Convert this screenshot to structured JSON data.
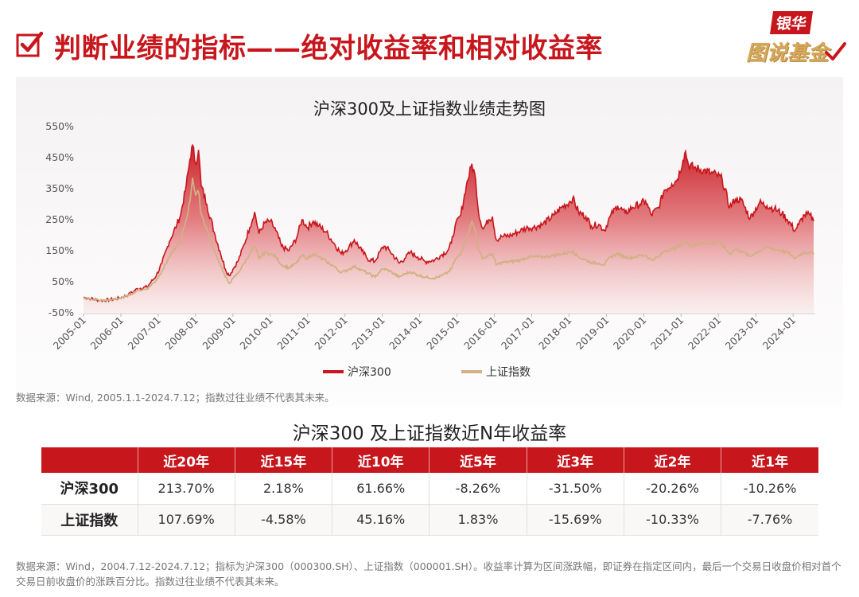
{
  "header": {
    "title": "判断业绩的指标——绝对收益率和相对收益率",
    "brand_top": "银华",
    "brand_bottom": "图说基金"
  },
  "colors": {
    "accent": "#c8161d",
    "hs300": "#c8161d",
    "sz": "#d2b083",
    "brand_gold": "#d6a85c"
  },
  "chart_data": {
    "type": "area",
    "title": "沪深300及上证指数业绩走势图",
    "xlabel": "",
    "ylabel": "",
    "y_ticks": [
      "550%",
      "450%",
      "350%",
      "250%",
      "150%",
      "50%",
      "-50%"
    ],
    "y_tick_values": [
      550,
      450,
      350,
      250,
      150,
      50,
      -50
    ],
    "ylim": [
      -50,
      550
    ],
    "x_ticks": [
      "2005-01",
      "2006-01",
      "2007-01",
      "2008-01",
      "2009-01",
      "2010-01",
      "2011-01",
      "2012-01",
      "2013-01",
      "2014-01",
      "2015-01",
      "2016-01",
      "2017-01",
      "2018-01",
      "2019-01",
      "2020-01",
      "2021-01",
      "2022-01",
      "2023-01",
      "2024-01"
    ],
    "xlim": [
      2005.0,
      2024.55
    ],
    "legend": [
      "沪深300",
      "上证指数"
    ],
    "legend_position": "bottom-center",
    "series": [
      {
        "name": "沪深300",
        "points": [
          [
            2005.0,
            0
          ],
          [
            2005.2,
            -4
          ],
          [
            2005.45,
            -10
          ],
          [
            2005.7,
            -8
          ],
          [
            2005.95,
            -3
          ],
          [
            2006.2,
            8
          ],
          [
            2006.45,
            28
          ],
          [
            2006.7,
            33
          ],
          [
            2006.95,
            70
          ],
          [
            2007.1,
            110
          ],
          [
            2007.3,
            180
          ],
          [
            2007.5,
            235
          ],
          [
            2007.6,
            265
          ],
          [
            2007.75,
            360
          ],
          [
            2007.85,
            445
          ],
          [
            2007.92,
            490
          ],
          [
            2008.0,
            430
          ],
          [
            2008.08,
            475
          ],
          [
            2008.15,
            360
          ],
          [
            2008.3,
            300
          ],
          [
            2008.5,
            210
          ],
          [
            2008.65,
            150
          ],
          [
            2008.8,
            90
          ],
          [
            2008.9,
            70
          ],
          [
            2009.0,
            90
          ],
          [
            2009.15,
            120
          ],
          [
            2009.3,
            170
          ],
          [
            2009.45,
            225
          ],
          [
            2009.58,
            275
          ],
          [
            2009.7,
            205
          ],
          [
            2009.85,
            240
          ],
          [
            2010.0,
            245
          ],
          [
            2010.15,
            215
          ],
          [
            2010.3,
            165
          ],
          [
            2010.5,
            150
          ],
          [
            2010.7,
            190
          ],
          [
            2010.85,
            250
          ],
          [
            2011.0,
            225
          ],
          [
            2011.15,
            245
          ],
          [
            2011.3,
            230
          ],
          [
            2011.5,
            210
          ],
          [
            2011.7,
            175
          ],
          [
            2011.9,
            140
          ],
          [
            2012.1,
            160
          ],
          [
            2012.25,
            185
          ],
          [
            2012.45,
            150
          ],
          [
            2012.6,
            125
          ],
          [
            2012.8,
            115
          ],
          [
            2012.95,
            150
          ],
          [
            2013.05,
            165
          ],
          [
            2013.2,
            150
          ],
          [
            2013.45,
            110
          ],
          [
            2013.6,
            125
          ],
          [
            2013.75,
            145
          ],
          [
            2013.95,
            130
          ],
          [
            2014.15,
            115
          ],
          [
            2014.4,
            120
          ],
          [
            2014.6,
            138
          ],
          [
            2014.75,
            150
          ],
          [
            2014.85,
            175
          ],
          [
            2014.95,
            230
          ],
          [
            2015.1,
            265
          ],
          [
            2015.25,
            360
          ],
          [
            2015.4,
            430
          ],
          [
            2015.5,
            380
          ],
          [
            2015.58,
            270
          ],
          [
            2015.7,
            220
          ],
          [
            2015.85,
            250
          ],
          [
            2015.95,
            260
          ],
          [
            2016.05,
            185
          ],
          [
            2016.2,
            195
          ],
          [
            2016.45,
            200
          ],
          [
            2016.7,
            215
          ],
          [
            2016.9,
            225
          ],
          [
            2017.05,
            225
          ],
          [
            2017.3,
            235
          ],
          [
            2017.6,
            265
          ],
          [
            2017.8,
            290
          ],
          [
            2018.0,
            305
          ],
          [
            2018.1,
            320
          ],
          [
            2018.25,
            275
          ],
          [
            2018.45,
            260
          ],
          [
            2018.6,
            230
          ],
          [
            2018.8,
            235
          ],
          [
            2018.95,
            215
          ],
          [
            2019.1,
            260
          ],
          [
            2019.3,
            295
          ],
          [
            2019.5,
            270
          ],
          [
            2019.7,
            290
          ],
          [
            2019.9,
            300
          ],
          [
            2020.05,
            310
          ],
          [
            2020.2,
            265
          ],
          [
            2020.4,
            290
          ],
          [
            2020.55,
            345
          ],
          [
            2020.75,
            365
          ],
          [
            2020.9,
            380
          ],
          [
            2021.05,
            440
          ],
          [
            2021.12,
            470
          ],
          [
            2021.2,
            425
          ],
          [
            2021.4,
            415
          ],
          [
            2021.6,
            410
          ],
          [
            2021.8,
            400
          ],
          [
            2021.95,
            395
          ],
          [
            2022.1,
            380
          ],
          [
            2022.3,
            290
          ],
          [
            2022.45,
            315
          ],
          [
            2022.6,
            315
          ],
          [
            2022.85,
            255
          ],
          [
            2022.95,
            275
          ],
          [
            2023.1,
            305
          ],
          [
            2023.3,
            295
          ],
          [
            2023.5,
            285
          ],
          [
            2023.7,
            270
          ],
          [
            2023.85,
            250
          ],
          [
            2024.05,
            215
          ],
          [
            2024.15,
            235
          ],
          [
            2024.3,
            265
          ],
          [
            2024.45,
            265
          ],
          [
            2024.55,
            245
          ]
        ]
      },
      {
        "name": "上证指数",
        "points": [
          [
            2005.0,
            0
          ],
          [
            2005.2,
            -5
          ],
          [
            2005.45,
            -10
          ],
          [
            2005.7,
            -9
          ],
          [
            2005.95,
            -4
          ],
          [
            2006.2,
            6
          ],
          [
            2006.45,
            22
          ],
          [
            2006.7,
            27
          ],
          [
            2006.95,
            55
          ],
          [
            2007.1,
            85
          ],
          [
            2007.3,
            130
          ],
          [
            2007.5,
            165
          ],
          [
            2007.6,
            185
          ],
          [
            2007.75,
            250
          ],
          [
            2007.85,
            310
          ],
          [
            2007.92,
            385
          ],
          [
            2008.0,
            330
          ],
          [
            2008.08,
            340
          ],
          [
            2008.15,
            270
          ],
          [
            2008.3,
            220
          ],
          [
            2008.5,
            150
          ],
          [
            2008.65,
            110
          ],
          [
            2008.8,
            65
          ],
          [
            2008.9,
            45
          ],
          [
            2009.0,
            60
          ],
          [
            2009.15,
            80
          ],
          [
            2009.3,
            110
          ],
          [
            2009.45,
            140
          ],
          [
            2009.58,
            165
          ],
          [
            2009.7,
            125
          ],
          [
            2009.85,
            145
          ],
          [
            2010.0,
            140
          ],
          [
            2010.15,
            130
          ],
          [
            2010.3,
            105
          ],
          [
            2010.5,
            95
          ],
          [
            2010.7,
            110
          ],
          [
            2010.85,
            135
          ],
          [
            2011.0,
            125
          ],
          [
            2011.15,
            140
          ],
          [
            2011.3,
            130
          ],
          [
            2011.5,
            115
          ],
          [
            2011.7,
            100
          ],
          [
            2011.9,
            80
          ],
          [
            2012.1,
            90
          ],
          [
            2012.25,
            100
          ],
          [
            2012.45,
            88
          ],
          [
            2012.6,
            78
          ],
          [
            2012.8,
            65
          ],
          [
            2012.95,
            85
          ],
          [
            2013.05,
            92
          ],
          [
            2013.2,
            85
          ],
          [
            2013.45,
            65
          ],
          [
            2013.6,
            75
          ],
          [
            2013.75,
            82
          ],
          [
            2013.95,
            72
          ],
          [
            2014.15,
            65
          ],
          [
            2014.4,
            62
          ],
          [
            2014.6,
            70
          ],
          [
            2014.75,
            80
          ],
          [
            2014.85,
            92
          ],
          [
            2014.95,
            120
          ],
          [
            2015.1,
            140
          ],
          [
            2015.25,
            190
          ],
          [
            2015.4,
            245
          ],
          [
            2015.5,
            210
          ],
          [
            2015.58,
            150
          ],
          [
            2015.7,
            125
          ],
          [
            2015.85,
            135
          ],
          [
            2015.95,
            140
          ],
          [
            2016.05,
            105
          ],
          [
            2016.2,
            112
          ],
          [
            2016.45,
            115
          ],
          [
            2016.7,
            120
          ],
          [
            2016.9,
            130
          ],
          [
            2017.05,
            130
          ],
          [
            2017.3,
            130
          ],
          [
            2017.6,
            135
          ],
          [
            2017.8,
            140
          ],
          [
            2018.0,
            145
          ],
          [
            2018.1,
            150
          ],
          [
            2018.25,
            130
          ],
          [
            2018.45,
            120
          ],
          [
            2018.6,
            112
          ],
          [
            2018.8,
            110
          ],
          [
            2018.95,
            105
          ],
          [
            2019.1,
            130
          ],
          [
            2019.3,
            140
          ],
          [
            2019.5,
            130
          ],
          [
            2019.7,
            128
          ],
          [
            2019.9,
            135
          ],
          [
            2020.05,
            135
          ],
          [
            2020.2,
            120
          ],
          [
            2020.4,
            130
          ],
          [
            2020.55,
            150
          ],
          [
            2020.75,
            155
          ],
          [
            2020.9,
            160
          ],
          [
            2021.05,
            175
          ],
          [
            2021.12,
            178
          ],
          [
            2021.2,
            168
          ],
          [
            2021.4,
            170
          ],
          [
            2021.6,
            175
          ],
          [
            2021.8,
            172
          ],
          [
            2021.95,
            180
          ],
          [
            2022.1,
            170
          ],
          [
            2022.3,
            140
          ],
          [
            2022.45,
            155
          ],
          [
            2022.6,
            150
          ],
          [
            2022.85,
            132
          ],
          [
            2022.95,
            140
          ],
          [
            2023.1,
            150
          ],
          [
            2023.3,
            162
          ],
          [
            2023.5,
            155
          ],
          [
            2023.7,
            150
          ],
          [
            2023.85,
            145
          ],
          [
            2024.05,
            125
          ],
          [
            2024.15,
            135
          ],
          [
            2024.3,
            145
          ],
          [
            2024.45,
            145
          ],
          [
            2024.55,
            138
          ]
        ]
      }
    ]
  },
  "source1": "数据来源：Wind, 2005.1.1-2024.7.12；指数过往业绩不代表其未来。",
  "table": {
    "title": "沪深300 及上证指数近N年收益率",
    "headers": [
      "",
      "近20年",
      "近15年",
      "近10年",
      "近5年",
      "近3年",
      "近2年",
      "近1年"
    ],
    "rows": [
      {
        "name": "沪深300",
        "values": [
          "213.70%",
          "2.18%",
          "61.66%",
          "-8.26%",
          "-31.50%",
          "-20.26%",
          "-10.26%"
        ]
      },
      {
        "name": "上证指数",
        "values": [
          "107.69%",
          "-4.58%",
          "45.16%",
          "1.83%",
          "-15.69%",
          "-10.33%",
          "-7.76%"
        ]
      }
    ]
  },
  "source2": "数据来源：Wind，2004.7.12-2024.7.12；指标为沪深300（000300.SH）、上证指数（000001.SH）。收益率计算为区间涨跌幅，即证券在指定区间内，最后一个交易日收盘价相对首个交易日前收盘价的涨跌百分比。指数过往业绩不代表其未来。"
}
